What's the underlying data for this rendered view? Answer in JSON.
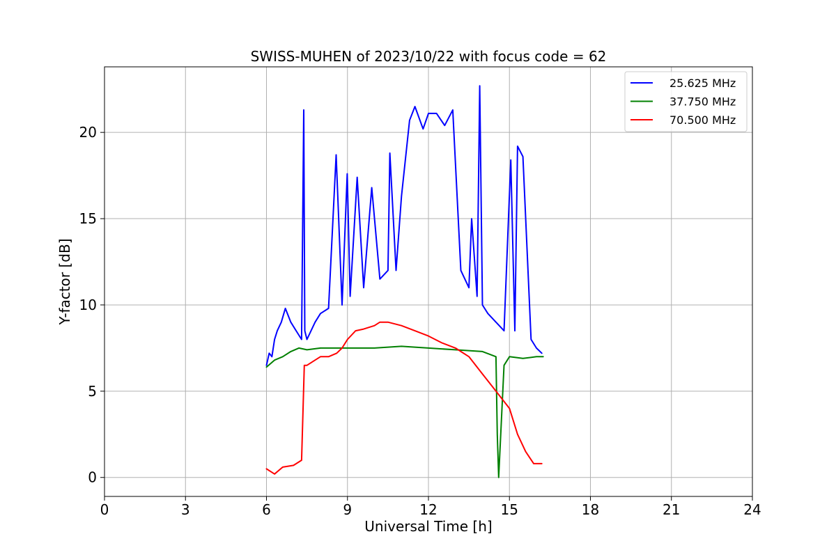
{
  "chart_data": {
    "type": "line",
    "title": "SWISS-MUHEN of 2023/10/22 with focus code = 62",
    "xlabel": "Universal Time [h]",
    "ylabel": "Y-factor [dB]",
    "xlim": [
      0,
      24
    ],
    "ylim": [
      -1.1,
      23.8
    ],
    "xticks": [
      0,
      3,
      6,
      9,
      12,
      15,
      18,
      21,
      24
    ],
    "yticks": [
      0,
      5,
      10,
      15,
      20
    ],
    "grid": true,
    "legend_position": "top-right",
    "series": [
      {
        "name": "25.625 MHz",
        "color": "#0000ff",
        "x": [
          6.0,
          6.1,
          6.2,
          6.3,
          6.4,
          6.55,
          6.7,
          6.9,
          7.1,
          7.3,
          7.38,
          7.42,
          7.5,
          7.8,
          8.0,
          8.3,
          8.58,
          8.8,
          8.99,
          9.1,
          9.36,
          9.6,
          9.9,
          10.2,
          10.5,
          10.57,
          10.8,
          11.0,
          11.3,
          11.5,
          11.8,
          12.0,
          12.3,
          12.6,
          12.9,
          13.2,
          13.5,
          13.6,
          13.8,
          13.9,
          14.0,
          14.2,
          14.5,
          14.8,
          15.05,
          15.2,
          15.3,
          15.5,
          15.8,
          16.0,
          16.2
        ],
        "y": [
          6.5,
          7.2,
          7.0,
          8.0,
          8.5,
          9.0,
          9.8,
          9.0,
          8.5,
          8.0,
          21.3,
          8.5,
          8.0,
          9.0,
          9.5,
          9.8,
          18.7,
          10.0,
          17.6,
          10.5,
          17.4,
          11.0,
          16.8,
          11.5,
          12.0,
          18.8,
          12.0,
          16.3,
          20.7,
          21.5,
          20.2,
          21.1,
          21.1,
          20.4,
          21.3,
          12.0,
          11.0,
          15.0,
          10.5,
          22.7,
          10.0,
          9.5,
          9.0,
          8.5,
          18.4,
          8.5,
          19.2,
          18.6,
          8.0,
          7.5,
          7.2
        ]
      },
      {
        "name": "37.750 MHz",
        "color": "#008000",
        "x": [
          6.0,
          6.3,
          6.6,
          6.9,
          7.2,
          7.5,
          8.0,
          9.0,
          10.0,
          11.0,
          12.0,
          13.0,
          14.0,
          14.5,
          14.55,
          14.6,
          14.8,
          15.0,
          15.5,
          16.0,
          16.25
        ],
        "y": [
          6.4,
          6.8,
          7.0,
          7.3,
          7.5,
          7.4,
          7.5,
          7.5,
          7.5,
          7.6,
          7.5,
          7.4,
          7.3,
          7.0,
          2.5,
          0.0,
          6.5,
          7.0,
          6.9,
          7.0,
          7.0
        ]
      },
      {
        "name": "70.500 MHz",
        "color": "#ff0000",
        "x": [
          6.0,
          6.3,
          6.6,
          7.0,
          7.3,
          7.4,
          7.5,
          7.8,
          8.0,
          8.3,
          8.6,
          8.8,
          9.0,
          9.3,
          9.6,
          10.0,
          10.2,
          10.5,
          11.0,
          11.5,
          12.0,
          12.5,
          13.0,
          13.5,
          14.0,
          14.5,
          15.0,
          15.3,
          15.6,
          15.9,
          16.2
        ],
        "y": [
          0.5,
          0.2,
          0.6,
          0.7,
          1.0,
          6.5,
          6.5,
          6.8,
          7.0,
          7.0,
          7.2,
          7.5,
          8.0,
          8.5,
          8.6,
          8.8,
          9.0,
          9.0,
          8.8,
          8.5,
          8.2,
          7.8,
          7.5,
          7.0,
          6.0,
          5.0,
          4.0,
          2.5,
          1.5,
          0.8,
          0.8
        ]
      }
    ]
  }
}
